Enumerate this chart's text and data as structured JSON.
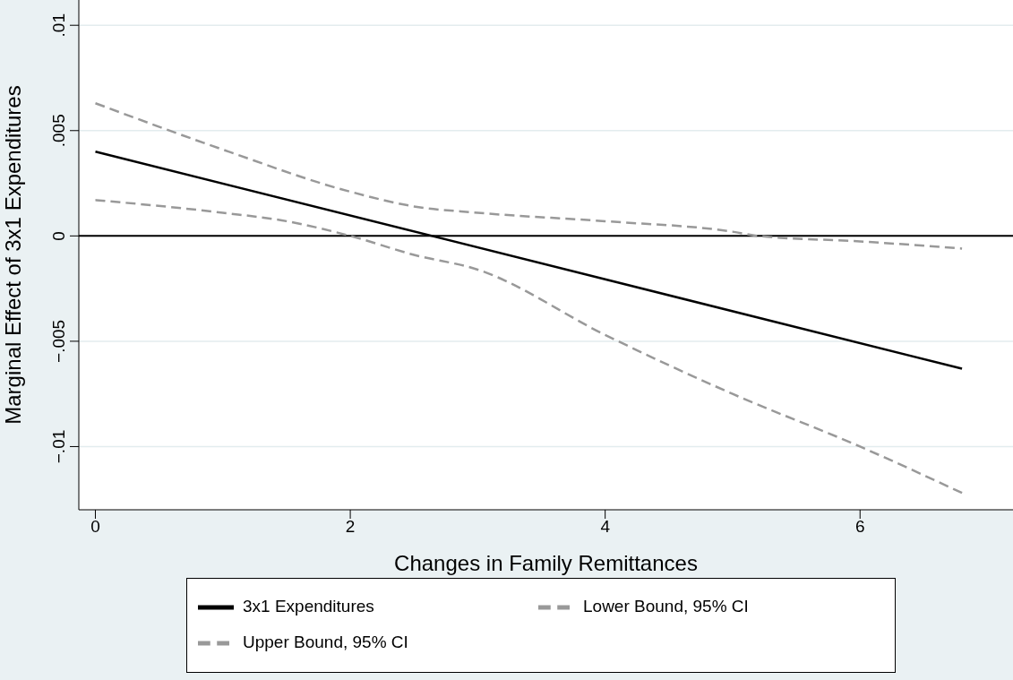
{
  "chart_data": {
    "type": "line",
    "xlabel": "Changes in Family Remittances",
    "ylabel": "Marginal Effect of 3x1 Expenditures",
    "xlim": [
      -0.13,
      7.2
    ],
    "xticks": [
      0,
      2,
      4,
      6
    ],
    "ylim": [
      -0.013,
      0.0112
    ],
    "yticks": [
      {
        "value": -0.01,
        "label": "−.01"
      },
      {
        "value": -0.005,
        "label": "−.005"
      },
      {
        "value": 0,
        "label": "0"
      },
      {
        "value": 0.005,
        "label": ".005"
      },
      {
        "value": 0.01,
        "label": ".01"
      }
    ],
    "grid": "y",
    "legend": "bottom",
    "marker": "none",
    "ref_lines": [
      {
        "axis": "y",
        "value": 0,
        "color": "#000000",
        "line_style": "solid"
      }
    ],
    "series": [
      {
        "name": "3x1 Expenditures",
        "color": "#000000",
        "line_style": "solid",
        "x": [
          0,
          6.8
        ],
        "values": [
          0.004,
          -0.0063
        ]
      },
      {
        "name": "Upper Bound, 95% CI",
        "color": "#999999",
        "line_style": "dashed",
        "x": [
          0,
          1,
          2,
          2.5,
          3,
          4,
          5,
          5.2,
          6,
          6.8
        ],
        "values": [
          0.0063,
          0.0041,
          0.0021,
          0.0014,
          0.0011,
          0.0007,
          0.0002,
          0,
          -0.00026,
          -0.0006
        ]
      },
      {
        "name": "Lower Bound, 95% CI",
        "color": "#999999",
        "line_style": "dashed",
        "x": [
          0,
          1,
          1.5,
          2,
          2.5,
          3,
          4,
          5,
          6,
          6.8
        ],
        "values": [
          0.0017,
          0.0011,
          0.0007,
          0,
          -0.0009,
          -0.0016,
          -0.0047,
          -0.0075,
          -0.01,
          -0.0122
        ]
      }
    ]
  }
}
